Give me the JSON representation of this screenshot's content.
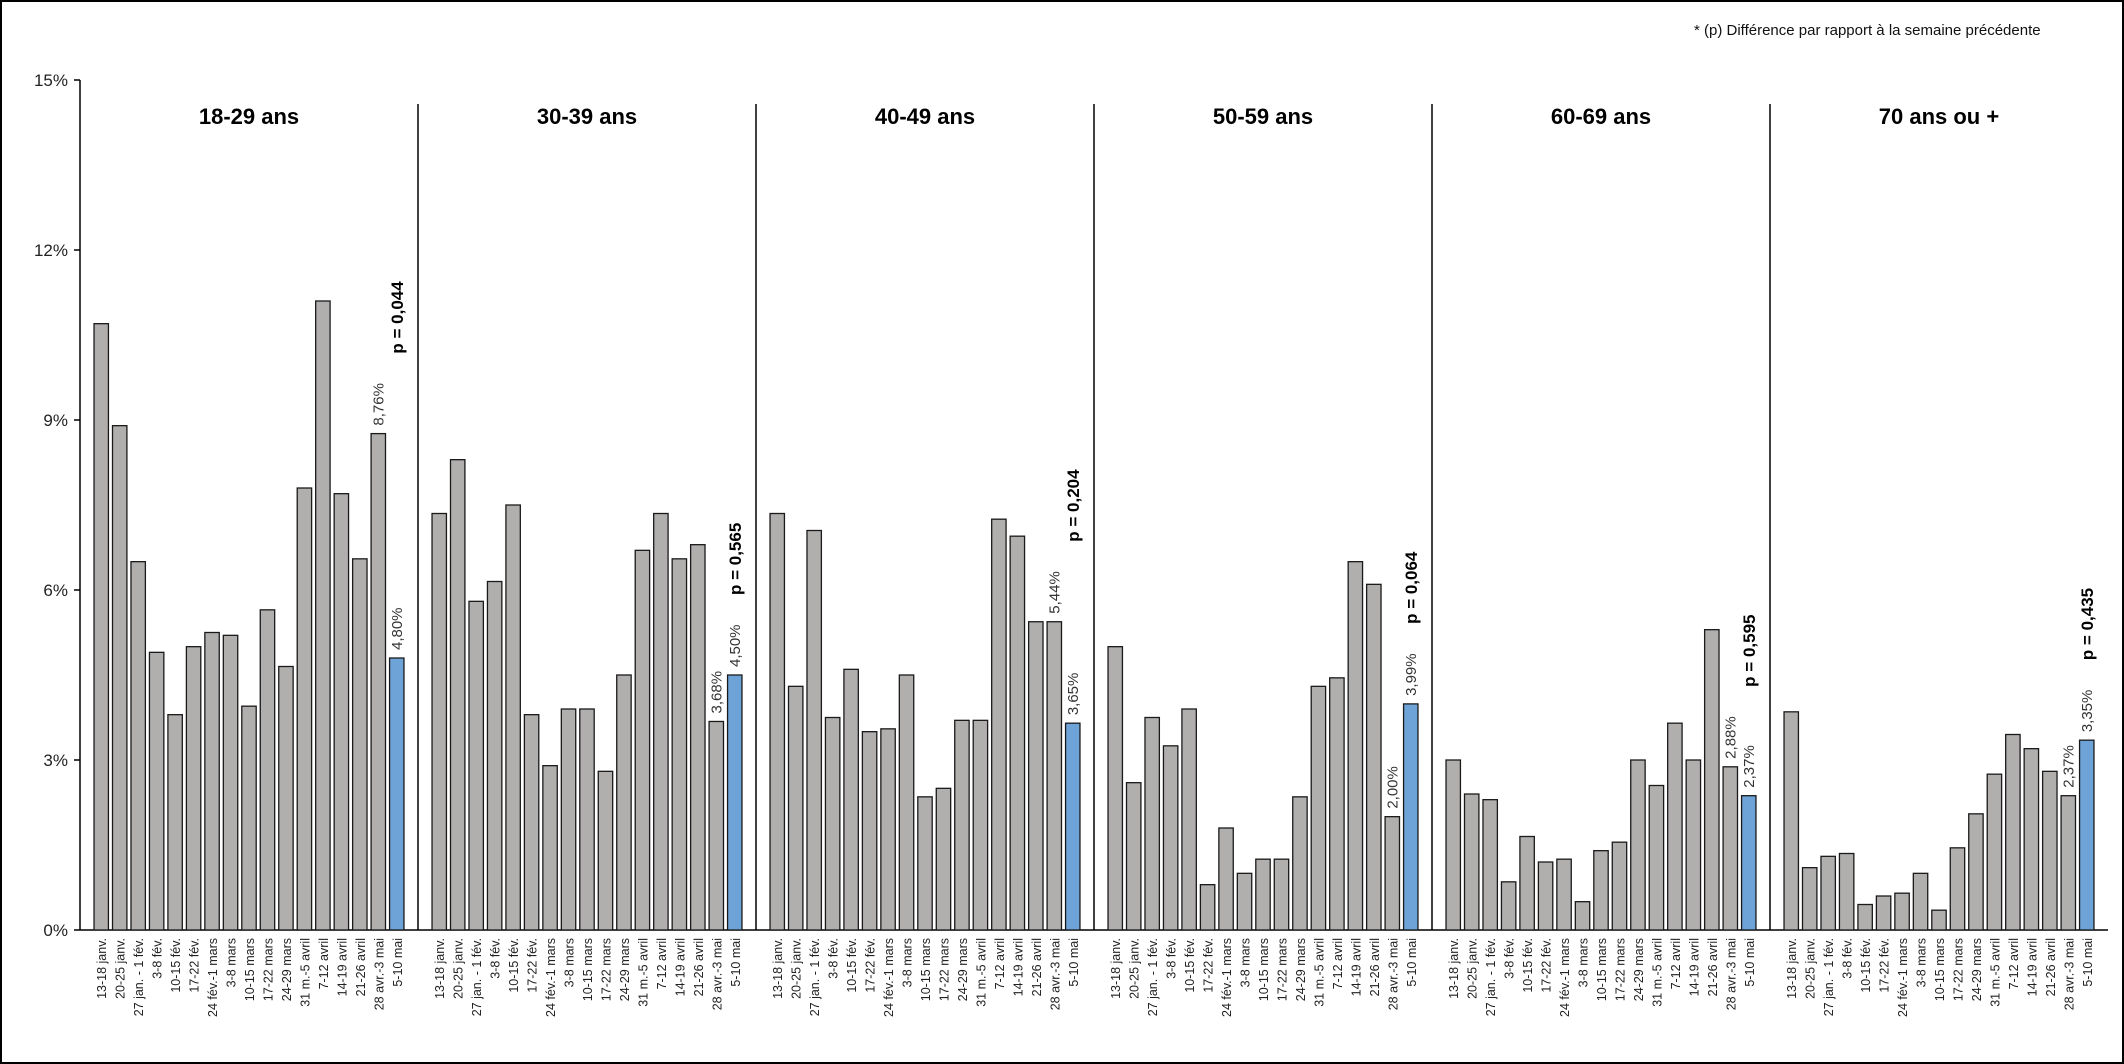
{
  "note": "* (p) Différence par rapport à la semaine précédente",
  "chart_data": {
    "type": "bar",
    "ylim": [
      0,
      15
    ],
    "yticks": [
      "0%",
      "3%",
      "6%",
      "9%",
      "12%",
      "15%"
    ],
    "ytick_values": [
      0,
      3,
      6,
      9,
      12,
      15
    ],
    "grid": false,
    "bar_color": "#b1aeae",
    "highlight_color": "#6ea3d8",
    "categories": [
      "13-18 janv.",
      "20-25 janv.",
      "27 jan. - 1 fév.",
      "3-8 fév.",
      "10-15 fév.",
      "17-22 fév.",
      "24 fév.-1 mars",
      "3-8 mars",
      "10-15 mars",
      "17-22 mars",
      "24-29 mars",
      "31 m.-5 avril",
      "7-12 avril",
      "14-19 avril",
      "21-26 avril",
      "28 avr.-3 mai",
      "5-10 mai"
    ],
    "panels": [
      {
        "title": "18-29 ans",
        "p": "p = 0,044",
        "values": [
          10.7,
          8.9,
          6.5,
          4.9,
          3.8,
          5.0,
          5.25,
          5.2,
          3.95,
          5.65,
          4.65,
          7.8,
          11.1,
          7.7,
          6.55,
          8.76,
          4.8
        ],
        "labels": [
          {
            "index": 15,
            "text": "8,76%"
          },
          {
            "index": 16,
            "text": "4,80%"
          }
        ]
      },
      {
        "title": "30-39 ans",
        "p": "p = 0,565",
        "values": [
          7.35,
          8.3,
          5.8,
          6.15,
          7.5,
          3.8,
          2.9,
          3.9,
          3.9,
          2.8,
          4.5,
          6.7,
          7.35,
          6.55,
          6.8,
          3.68,
          4.5
        ],
        "labels": [
          {
            "index": 15,
            "text": "3,68%"
          },
          {
            "index": 16,
            "text": "4,50%"
          }
        ]
      },
      {
        "title": "40-49 ans",
        "p": "p = 0,204",
        "values": [
          7.35,
          4.3,
          7.05,
          3.75,
          4.6,
          3.5,
          3.55,
          4.5,
          2.35,
          2.5,
          3.7,
          3.7,
          7.25,
          6.95,
          5.44,
          5.44,
          3.65
        ],
        "labels": [
          {
            "index": 15,
            "text": "5,44%"
          },
          {
            "index": 16,
            "text": "3,65%"
          }
        ]
      },
      {
        "title": "50-59 ans",
        "p": "p = 0,064",
        "values": [
          5.0,
          2.6,
          3.75,
          3.25,
          3.9,
          0.8,
          1.8,
          1.0,
          1.25,
          1.25,
          2.35,
          4.3,
          4.45,
          6.5,
          6.1,
          2.0,
          3.99
        ],
        "labels": [
          {
            "index": 15,
            "text": "2,00%"
          },
          {
            "index": 16,
            "text": "3,99%"
          }
        ]
      },
      {
        "title": "60-69 ans",
        "p": "p = 0,595",
        "values": [
          3.0,
          2.4,
          2.3,
          0.85,
          1.65,
          1.2,
          1.25,
          0.5,
          1.4,
          1.55,
          3.0,
          2.55,
          3.65,
          3.0,
          5.3,
          2.88,
          2.37
        ],
        "labels": [
          {
            "index": 15,
            "text": "2,88%"
          },
          {
            "index": 16,
            "text": "2,37%"
          }
        ]
      },
      {
        "title": "70 ans ou +",
        "p": "p = 0,435",
        "values": [
          3.85,
          1.1,
          1.3,
          1.35,
          0.45,
          0.6,
          0.65,
          1.0,
          0.35,
          1.45,
          2.05,
          2.75,
          3.45,
          3.2,
          2.8,
          2.37,
          3.35
        ],
        "labels": [
          {
            "index": 15,
            "text": "2,37%"
          },
          {
            "index": 16,
            "text": "3,35%"
          }
        ]
      }
    ]
  }
}
